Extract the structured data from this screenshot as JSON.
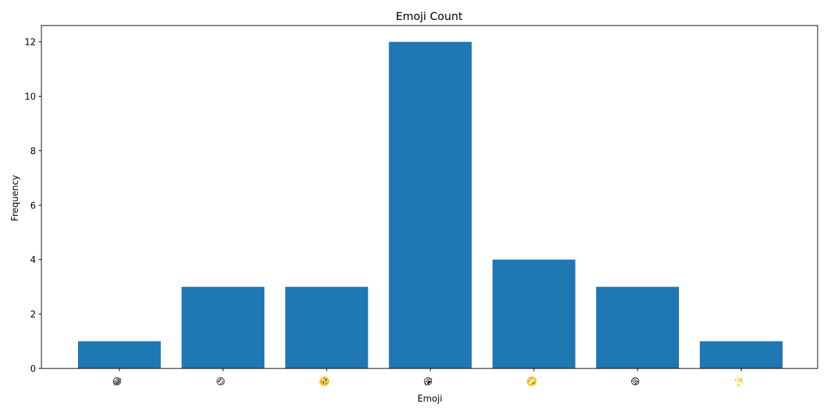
{
  "chart_data": {
    "type": "bar",
    "title": "Emoji Count",
    "xlabel": "Emoji",
    "ylabel": "Frequency",
    "categories": [
      "😂",
      "😍",
      "🥺",
      "😭",
      "🙄",
      "😩",
      "✨"
    ],
    "values": [
      1,
      3,
      3,
      12,
      4,
      3,
      1
    ],
    "ylim": [
      0,
      12.6
    ],
    "yticks": [
      0,
      2,
      4,
      6,
      8,
      10,
      12
    ],
    "bar_color": "#1f77b4",
    "grid": false,
    "legend": "none"
  }
}
